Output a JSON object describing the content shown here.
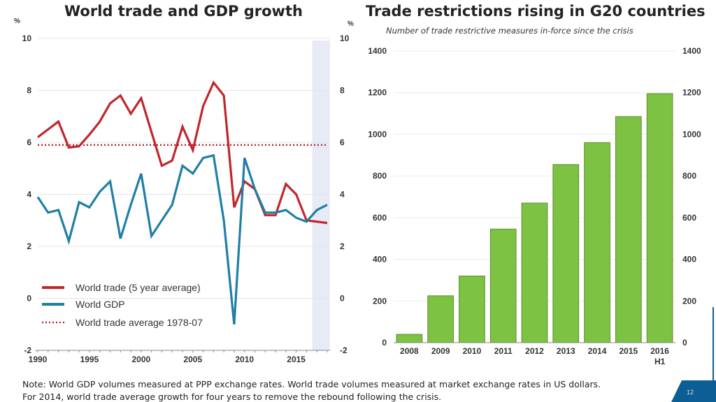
{
  "left_title": "World trade and GDP growth",
  "right_title": "Trade restrictions rising in G20 countries",
  "right_subtitle": "Number of trade restrictive measures in-force since the crisis",
  "notes": [
    "Note: World GDP volumes measured at PPP exchange rates. World trade volumes measured at market exchange rates in US dollars.",
    "For 2014, world trade average growth for four years to remove the rebound following the crisis."
  ],
  "page_number": "12",
  "colors": {
    "world_trade": "#c0272d",
    "world_gdp": "#1f7fa6",
    "average_dotted": "#c0272d",
    "bars": "#7dc242",
    "bar_edge": "#5c8f2e",
    "shade": "#e8ebf5",
    "accent_blue": "#0e5e96"
  },
  "chart_data": [
    {
      "type": "line",
      "title": "World trade and GDP growth",
      "ylabel": "%",
      "ylabel_right": "%",
      "ylim": [
        -2,
        10
      ],
      "yticks": [
        -2,
        0,
        2,
        4,
        6,
        8,
        10
      ],
      "xlim": [
        1990,
        2018
      ],
      "xticks": [
        1990,
        1995,
        2000,
        2005,
        2010,
        2015
      ],
      "grid": true,
      "shaded_region": [
        2016,
        2018
      ],
      "legend_position": "bottom-left",
      "x": [
        1990,
        1991,
        1992,
        1993,
        1994,
        1995,
        1996,
        1997,
        1998,
        1999,
        2000,
        2001,
        2002,
        2003,
        2004,
        2005,
        2006,
        2007,
        2008,
        2009,
        2010,
        2011,
        2012,
        2013,
        2014,
        2015,
        2016,
        2017,
        2018
      ],
      "series": [
        {
          "name": "World trade (5 year average)",
          "style": "solid",
          "values": [
            6.2,
            6.5,
            6.8,
            5.8,
            5.85,
            6.3,
            6.8,
            7.5,
            7.8,
            7.1,
            7.7,
            6.4,
            5.1,
            5.3,
            6.6,
            5.7,
            7.4,
            8.3,
            7.8,
            3.5,
            4.5,
            4.2,
            3.2,
            3.2,
            4.4,
            4.0,
            3.0,
            2.95,
            2.9
          ]
        },
        {
          "name": "World GDP",
          "style": "solid",
          "values": [
            3.9,
            3.3,
            3.4,
            2.2,
            3.7,
            3.5,
            4.1,
            4.5,
            2.3,
            3.6,
            4.8,
            2.4,
            3.0,
            3.6,
            5.1,
            4.8,
            5.4,
            5.5,
            3.0,
            -1.0,
            5.4,
            4.2,
            3.3,
            3.3,
            3.4,
            3.1,
            2.95,
            3.4,
            3.6
          ]
        },
        {
          "name": "World trade average 1978-07",
          "style": "dotted",
          "values_constant": 5.9
        }
      ]
    },
    {
      "type": "bar",
      "title": "Trade restrictions rising in G20 countries",
      "subtitle": "Number of trade restrictive measures in-force since the crisis",
      "categories": [
        "2008",
        "2009",
        "2010",
        "2011",
        "2012",
        "2013",
        "2014",
        "2015",
        "2016"
      ],
      "category_sublabels": [
        "",
        "",
        "",
        "",
        "",
        "",
        "",
        "",
        "H1"
      ],
      "values": [
        40,
        225,
        320,
        545,
        670,
        855,
        960,
        1085,
        1195
      ],
      "ylim": [
        0,
        1400
      ],
      "yticks": [
        0,
        200,
        400,
        600,
        800,
        1000,
        1200,
        1400
      ],
      "grid": true,
      "xlabel": "",
      "ylabel": ""
    }
  ]
}
